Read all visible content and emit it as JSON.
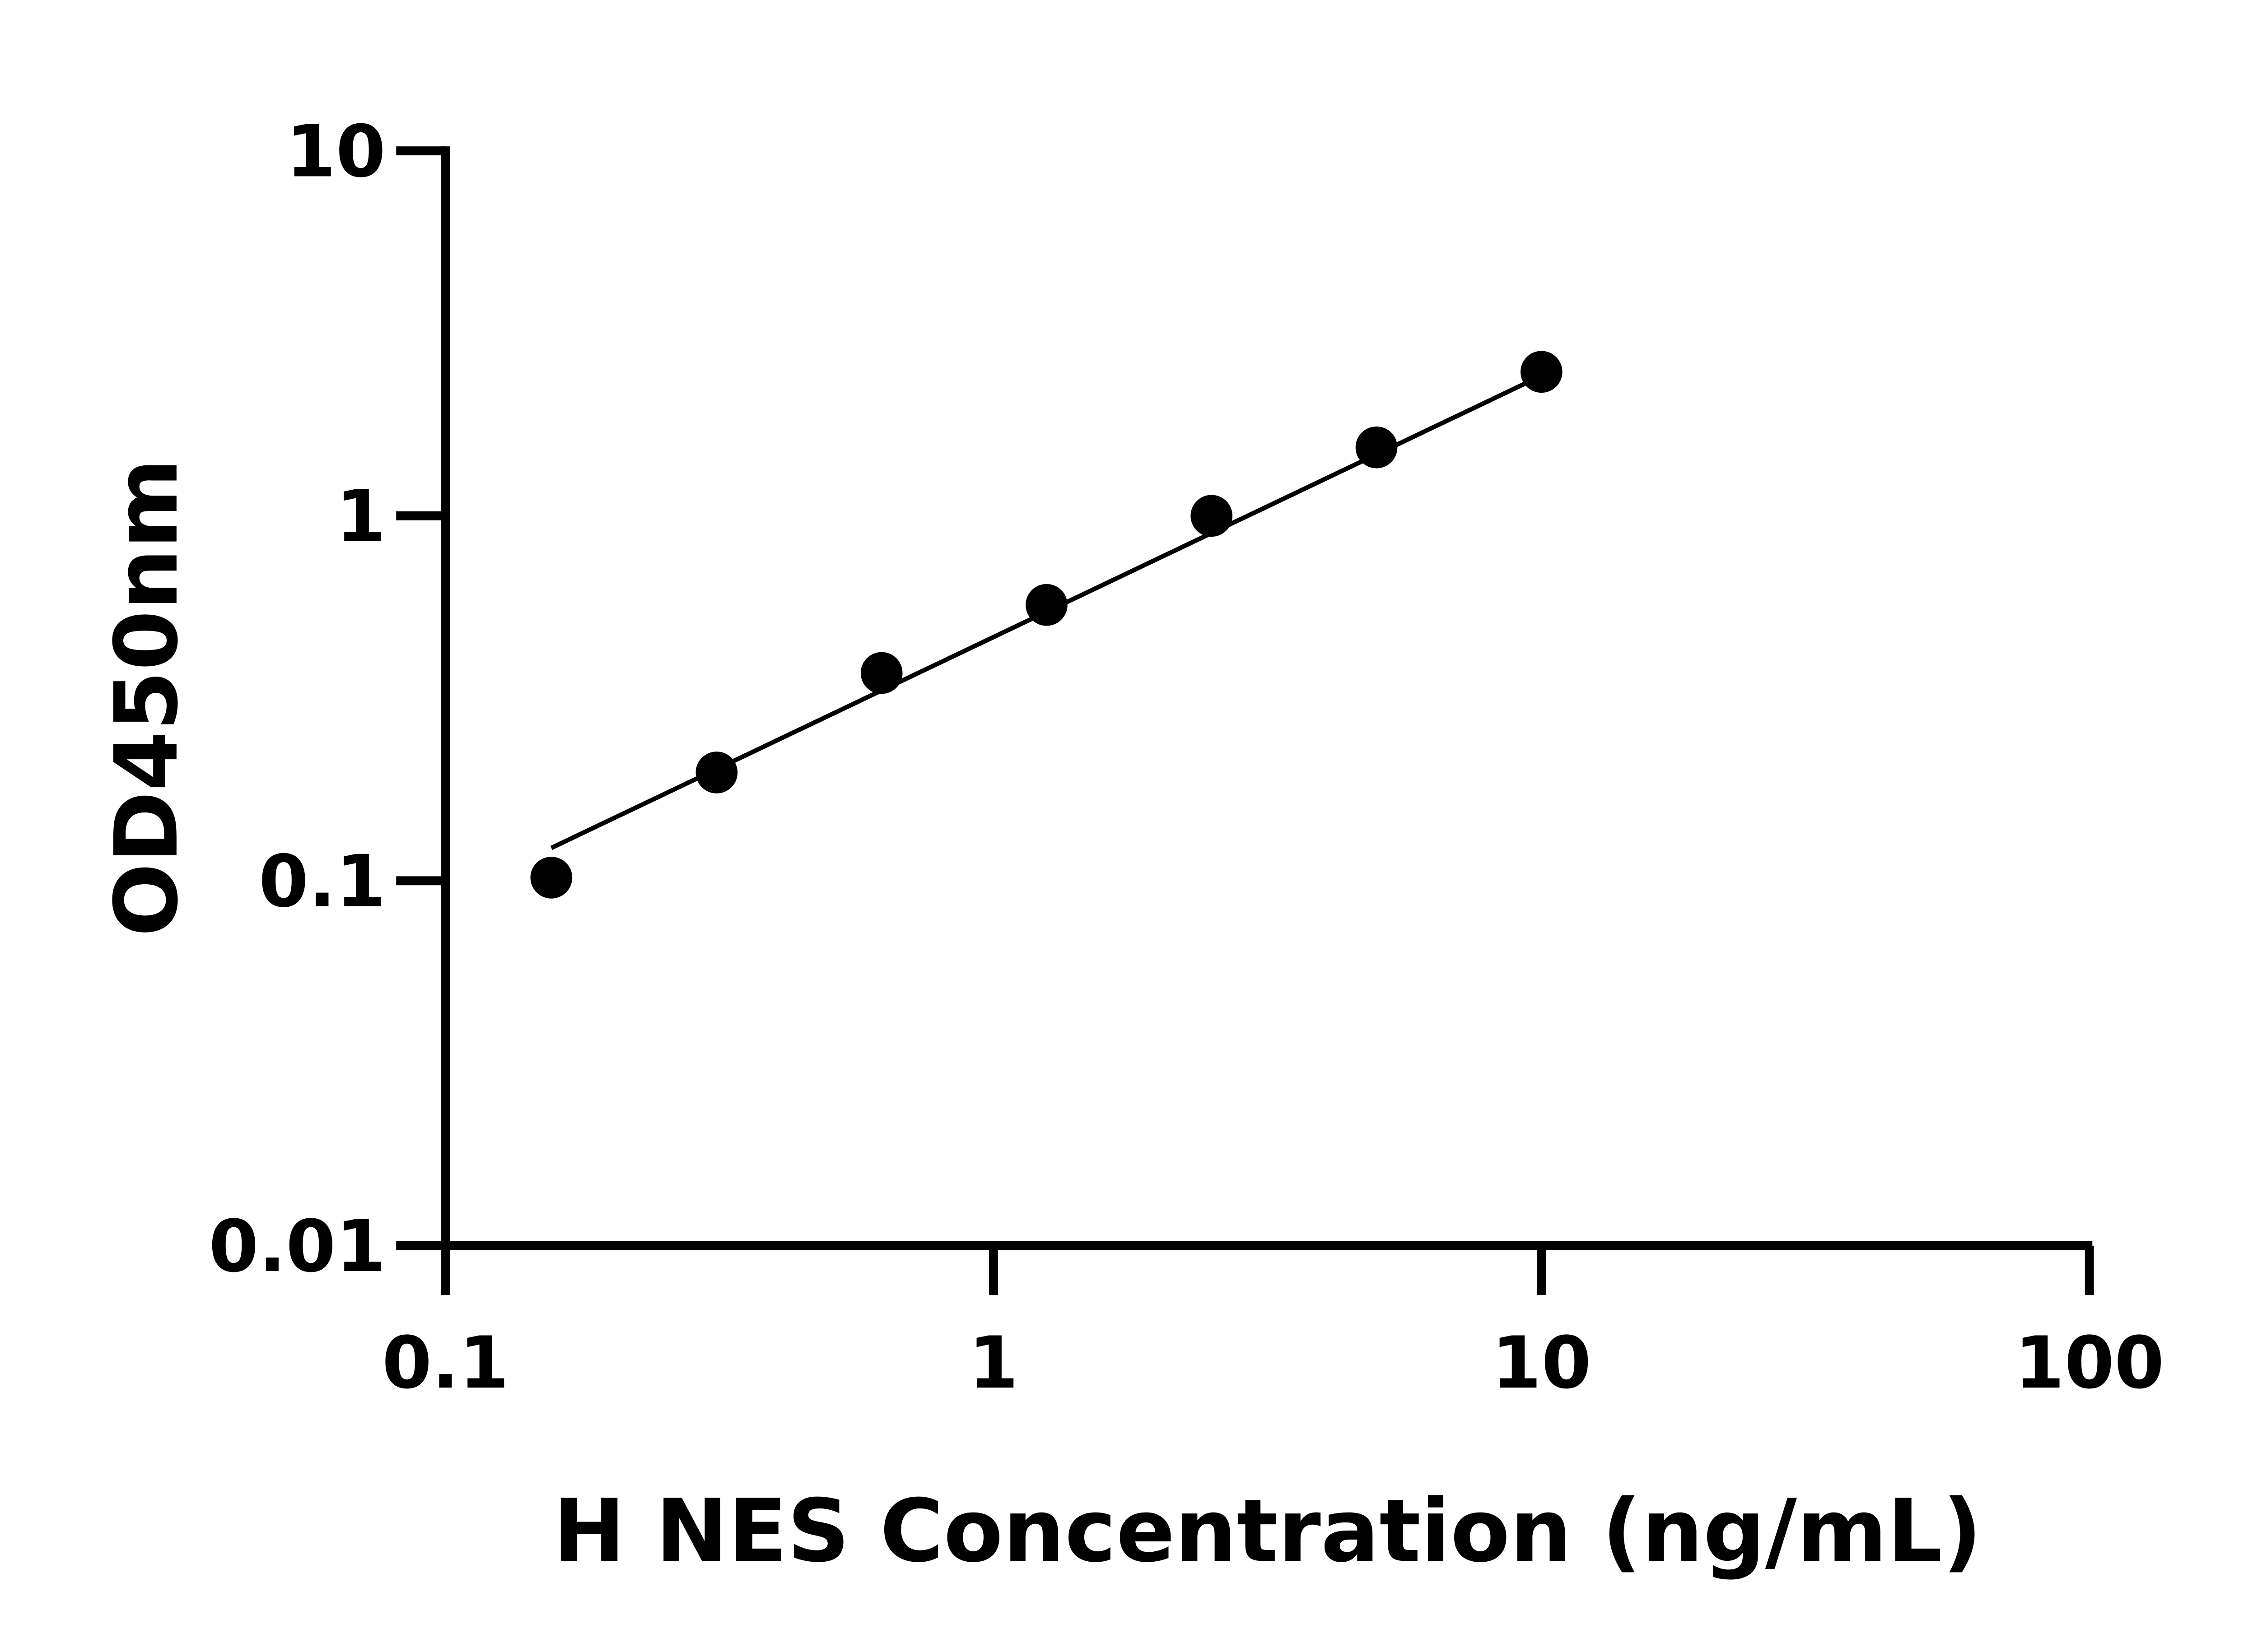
{
  "chart_data": {
    "type": "scatter",
    "title": "",
    "xlabel": "H NES Concentration (ng/mL)",
    "ylabel": "OD450nm",
    "x_scale": "log",
    "y_scale": "log",
    "xlim": [
      0.1,
      100
    ],
    "ylim": [
      0.01,
      10
    ],
    "x_ticks": [
      0.1,
      1,
      10,
      100
    ],
    "x_tick_labels": [
      "0.1",
      "1",
      "10",
      "100"
    ],
    "y_ticks": [
      0.01,
      0.1,
      1,
      10
    ],
    "y_tick_labels": [
      "0.01",
      "0.1",
      "1",
      "10"
    ],
    "grid": false,
    "legend": "none",
    "points": {
      "x": [
        0.156,
        0.3125,
        0.625,
        1.25,
        2.5,
        5,
        10
      ],
      "y": [
        0.102,
        0.198,
        0.371,
        0.57,
        1.0,
        1.54,
        2.48
      ]
    },
    "fit_line": {
      "x": [
        0.156,
        10
      ],
      "y": [
        0.123,
        2.42
      ]
    },
    "colors": {
      "marks": "#000000"
    }
  }
}
